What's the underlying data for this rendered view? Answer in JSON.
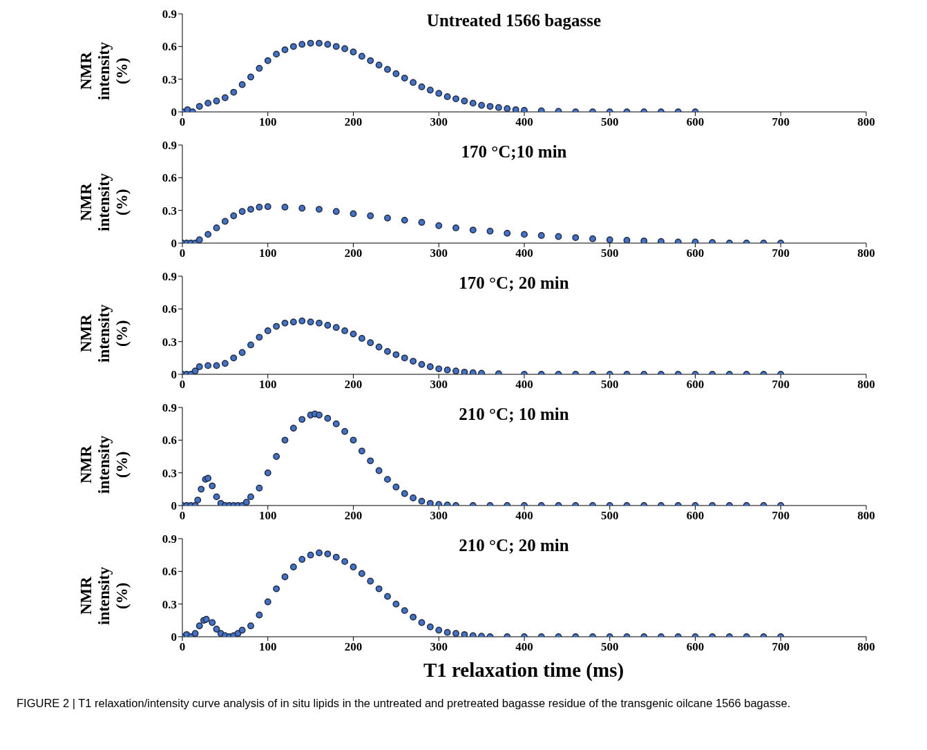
{
  "chart_data": [
    {
      "type": "scatter",
      "title": "Untreated 1566 bagasse",
      "ylabel": "NMR intensity (%)",
      "color": "#4472c4",
      "marker": "circle",
      "xlim": [
        0,
        800
      ],
      "xticks": [
        0,
        100,
        200,
        300,
        400,
        500,
        600,
        700,
        800
      ],
      "ylim": [
        0,
        0.9
      ],
      "yticks": [
        0,
        0.3,
        0.6,
        0.9
      ],
      "x": [
        0,
        6,
        12,
        20,
        30,
        40,
        50,
        60,
        70,
        80,
        90,
        100,
        110,
        120,
        130,
        140,
        150,
        160,
        170,
        180,
        190,
        200,
        210,
        220,
        230,
        240,
        250,
        260,
        270,
        280,
        290,
        300,
        310,
        320,
        330,
        340,
        350,
        360,
        370,
        380,
        390,
        400,
        420,
        440,
        460,
        480,
        500,
        520,
        540,
        560,
        580,
        600
      ],
      "values": [
        0,
        0.02,
        0,
        0.05,
        0.08,
        0.1,
        0.13,
        0.18,
        0.25,
        0.32,
        0.4,
        0.47,
        0.53,
        0.57,
        0.6,
        0.62,
        0.63,
        0.63,
        0.62,
        0.6,
        0.58,
        0.55,
        0.51,
        0.47,
        0.43,
        0.39,
        0.35,
        0.31,
        0.27,
        0.23,
        0.2,
        0.17,
        0.14,
        0.12,
        0.1,
        0.08,
        0.06,
        0.05,
        0.04,
        0.03,
        0.02,
        0.015,
        0.01,
        0.005,
        0,
        0,
        0,
        0,
        0,
        0,
        0,
        0
      ]
    },
    {
      "type": "scatter",
      "title": "170 °C;10 min",
      "ylabel": "NMR intensity (%)",
      "color": "#4472c4",
      "marker": "circle",
      "xlim": [
        0,
        800
      ],
      "xticks": [
        0,
        100,
        200,
        300,
        400,
        500,
        600,
        700,
        800
      ],
      "ylim": [
        0,
        0.9
      ],
      "yticks": [
        0,
        0.3,
        0.6,
        0.9
      ],
      "x": [
        0,
        5,
        10,
        15,
        20,
        30,
        40,
        50,
        60,
        70,
        80,
        90,
        100,
        120,
        140,
        160,
        180,
        200,
        220,
        240,
        260,
        280,
        300,
        320,
        340,
        360,
        380,
        400,
        420,
        440,
        460,
        480,
        500,
        520,
        540,
        560,
        580,
        600,
        620,
        640,
        660,
        680,
        700
      ],
      "values": [
        0,
        0,
        0,
        0,
        0.03,
        0.08,
        0.14,
        0.2,
        0.25,
        0.29,
        0.31,
        0.33,
        0.335,
        0.33,
        0.32,
        0.31,
        0.29,
        0.27,
        0.25,
        0.23,
        0.21,
        0.19,
        0.16,
        0.14,
        0.12,
        0.11,
        0.09,
        0.08,
        0.07,
        0.06,
        0.05,
        0.04,
        0.03,
        0.025,
        0.02,
        0.015,
        0.01,
        0.01,
        0.005,
        0,
        0,
        0,
        0
      ]
    },
    {
      "type": "scatter",
      "title": "170 °C; 20 min",
      "ylabel": "NMR intensity (%)",
      "color": "#4472c4",
      "marker": "circle",
      "xlim": [
        0,
        800
      ],
      "xticks": [
        0,
        100,
        200,
        300,
        400,
        500,
        600,
        700,
        800
      ],
      "ylim": [
        0,
        0.9
      ],
      "yticks": [
        0,
        0.3,
        0.6,
        0.9
      ],
      "x": [
        0,
        5,
        10,
        15,
        20,
        30,
        40,
        50,
        60,
        70,
        80,
        90,
        100,
        110,
        120,
        130,
        140,
        150,
        160,
        170,
        180,
        190,
        200,
        210,
        220,
        230,
        240,
        250,
        260,
        270,
        280,
        290,
        300,
        310,
        320,
        330,
        340,
        350,
        370,
        400,
        420,
        440,
        460,
        480,
        500,
        520,
        540,
        560,
        580,
        600,
        620,
        640,
        660,
        680,
        700
      ],
      "values": [
        0,
        0,
        0,
        0.03,
        0.07,
        0.08,
        0.08,
        0.1,
        0.15,
        0.2,
        0.27,
        0.34,
        0.4,
        0.44,
        0.47,
        0.48,
        0.49,
        0.48,
        0.47,
        0.45,
        0.43,
        0.4,
        0.37,
        0.33,
        0.29,
        0.25,
        0.21,
        0.18,
        0.15,
        0.12,
        0.09,
        0.07,
        0.05,
        0.04,
        0.03,
        0.02,
        0.015,
        0.01,
        0.005,
        0,
        0,
        0,
        0,
        0,
        0,
        0,
        0,
        0,
        0,
        0,
        0,
        0,
        0,
        0,
        0
      ]
    },
    {
      "type": "scatter",
      "title": "210 °C; 10 min",
      "ylabel": "NMR intensity (%)",
      "color": "#4472c4",
      "marker": "circle",
      "xlim": [
        0,
        800
      ],
      "xticks": [
        0,
        100,
        200,
        300,
        400,
        500,
        600,
        700,
        800
      ],
      "ylim": [
        0,
        0.9
      ],
      "yticks": [
        0,
        0.3,
        0.6,
        0.9
      ],
      "x": [
        0,
        5,
        10,
        15,
        18,
        22,
        27,
        30,
        35,
        40,
        45,
        50,
        55,
        60,
        65,
        70,
        75,
        80,
        90,
        100,
        110,
        120,
        130,
        140,
        150,
        155,
        160,
        170,
        180,
        190,
        200,
        210,
        220,
        230,
        240,
        250,
        260,
        270,
        280,
        290,
        300,
        310,
        320,
        340,
        360,
        380,
        400,
        420,
        440,
        460,
        480,
        500,
        520,
        540,
        560,
        580,
        600,
        620,
        640,
        660,
        680,
        700
      ],
      "values": [
        0,
        0,
        0,
        0,
        0.05,
        0.15,
        0.24,
        0.25,
        0.18,
        0.08,
        0.02,
        0,
        0,
        0,
        0,
        0,
        0.03,
        0.08,
        0.16,
        0.3,
        0.45,
        0.6,
        0.71,
        0.79,
        0.83,
        0.84,
        0.83,
        0.8,
        0.75,
        0.68,
        0.6,
        0.5,
        0.41,
        0.32,
        0.24,
        0.17,
        0.11,
        0.07,
        0.04,
        0.02,
        0.01,
        0.005,
        0,
        0,
        0,
        0,
        0,
        0,
        0,
        0,
        0,
        0,
        0,
        0,
        0,
        0,
        0,
        0,
        0,
        0,
        0,
        0
      ]
    },
    {
      "type": "scatter",
      "title": "210 °C; 20 min",
      "ylabel": "NMR intensity (%)",
      "xlabel": "T1 relaxation time (ms)",
      "color": "#4472c4",
      "marker": "circle",
      "xlim": [
        0,
        800
      ],
      "xticks": [
        0,
        100,
        200,
        300,
        400,
        500,
        600,
        700,
        800
      ],
      "ylim": [
        0,
        0.9
      ],
      "yticks": [
        0,
        0.3,
        0.6,
        0.9
      ],
      "annotations": [
        "FIGURE 2 | T1 relaxation/intensity curve analysis of in situ lipids in the untreated and pretreated bagasse residue of the transgenic oilcane 1566 bagasse."
      ],
      "x": [
        0,
        5,
        10,
        15,
        20,
        25,
        28,
        35,
        40,
        45,
        50,
        55,
        60,
        65,
        70,
        80,
        90,
        100,
        110,
        120,
        130,
        140,
        150,
        160,
        170,
        180,
        190,
        200,
        210,
        220,
        230,
        240,
        250,
        260,
        270,
        280,
        290,
        300,
        310,
        320,
        330,
        340,
        350,
        360,
        380,
        400,
        420,
        440,
        460,
        480,
        500,
        520,
        540,
        560,
        580,
        600,
        620,
        640,
        660,
        680,
        700
      ],
      "values": [
        0,
        0.02,
        0,
        0.03,
        0.1,
        0.15,
        0.16,
        0.13,
        0.07,
        0.03,
        0.01,
        0,
        0.01,
        0.03,
        0.06,
        0.1,
        0.2,
        0.32,
        0.44,
        0.55,
        0.64,
        0.71,
        0.75,
        0.77,
        0.76,
        0.73,
        0.69,
        0.64,
        0.58,
        0.51,
        0.44,
        0.37,
        0.3,
        0.24,
        0.18,
        0.13,
        0.09,
        0.06,
        0.04,
        0.03,
        0.02,
        0.01,
        0.005,
        0,
        0,
        0,
        0,
        0,
        0,
        0,
        0,
        0,
        0,
        0,
        0,
        0,
        0,
        0,
        0,
        0,
        0
      ]
    }
  ]
}
